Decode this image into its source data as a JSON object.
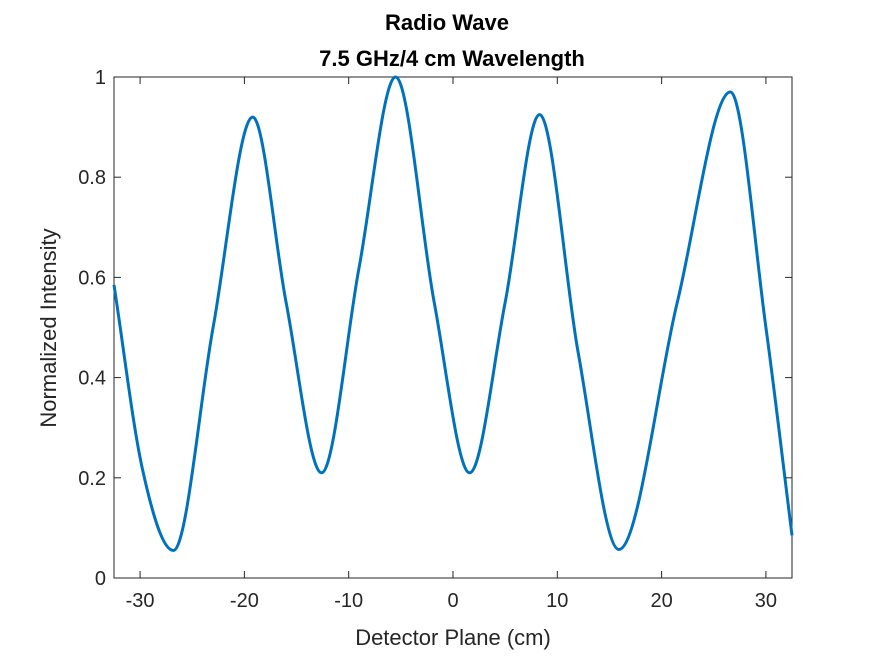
{
  "chart_data": {
    "type": "line",
    "title": [
      "Radio Wave",
      "7.5 GHz/4 cm Wavelength"
    ],
    "xlabel": "Detector Plane (cm)",
    "ylabel": "Normalized Intensity",
    "xlim": [
      -32.5,
      32.5
    ],
    "ylim": [
      0,
      1
    ],
    "xticks": [
      -30,
      -20,
      -10,
      0,
      10,
      20,
      30
    ],
    "yticks": [
      0,
      0.2,
      0.4,
      0.6,
      0.8,
      1
    ],
    "xtick_labels": [
      "-30",
      "-20",
      "-10",
      "0",
      "10",
      "20",
      "30"
    ],
    "ytick_labels": [
      "0",
      "0.2",
      "0.4",
      "0.6",
      "0.8",
      "1"
    ],
    "grid": false,
    "series": [
      {
        "color": "#0072BD",
        "x": [
          -32.5,
          -29.8,
          -26.8,
          -23.0,
          -19.2,
          -16.0,
          -12.6,
          -9.0,
          -5.5,
          -1.8,
          1.6,
          5.0,
          8.3,
          12.0,
          15.9,
          21.5,
          26.6,
          30.0,
          32.5
        ],
        "y": [
          0.585,
          0.22,
          0.055,
          0.5,
          0.92,
          0.55,
          0.21,
          0.62,
          1.0,
          0.55,
          0.21,
          0.55,
          0.925,
          0.45,
          0.057,
          0.55,
          0.97,
          0.5,
          0.085
        ]
      }
    ]
  }
}
